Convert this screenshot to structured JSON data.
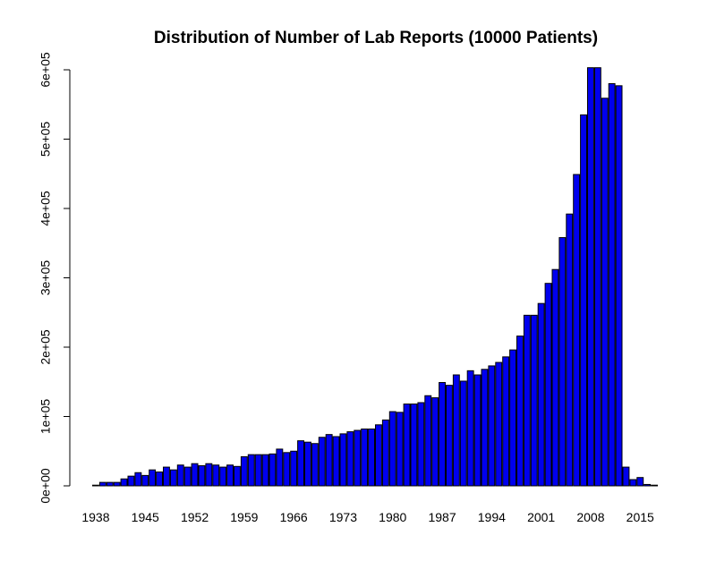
{
  "chart_data": {
    "type": "bar",
    "title": "Distribution of Number of Lab Reports (10000 Patients)",
    "xlabel": "",
    "ylabel": "",
    "ylim": [
      0,
      600000
    ],
    "y_ticks": [
      {
        "value": 0,
        "label": "0e+00"
      },
      {
        "value": 100000,
        "label": "1e+05"
      },
      {
        "value": 200000,
        "label": "2e+05"
      },
      {
        "value": 300000,
        "label": "3e+05"
      },
      {
        "value": 400000,
        "label": "4e+05"
      },
      {
        "value": 500000,
        "label": "5e+05"
      },
      {
        "value": 600000,
        "label": "6e+05"
      }
    ],
    "x_tick_labels": [
      "1938",
      "1945",
      "1952",
      "1959",
      "1966",
      "1973",
      "1980",
      "1987",
      "1994",
      "2001",
      "2008",
      "2015"
    ],
    "bar_color": "#0000ee",
    "categories": [
      "1938",
      "1939",
      "1940",
      "1941",
      "1942",
      "1943",
      "1944",
      "1945",
      "1946",
      "1947",
      "1948",
      "1949",
      "1950",
      "1951",
      "1952",
      "1953",
      "1954",
      "1955",
      "1956",
      "1957",
      "1958",
      "1959",
      "1960",
      "1961",
      "1962",
      "1963",
      "1964",
      "1965",
      "1966",
      "1967",
      "1968",
      "1969",
      "1970",
      "1971",
      "1972",
      "1973",
      "1974",
      "1975",
      "1976",
      "1977",
      "1978",
      "1979",
      "1980",
      "1981",
      "1982",
      "1983",
      "1984",
      "1985",
      "1986",
      "1987",
      "1988",
      "1989",
      "1990",
      "1991",
      "1992",
      "1993",
      "1994",
      "1995",
      "1996",
      "1997",
      "1998",
      "1999",
      "2000",
      "2001",
      "2002",
      "2003",
      "2004",
      "2005",
      "2006",
      "2007",
      "2008",
      "2009",
      "2010",
      "2011",
      "2012",
      "2013",
      "2014",
      "2015",
      "2016",
      "2017"
    ],
    "values": [
      1000,
      5000,
      5000,
      5000,
      10000,
      14000,
      19000,
      15000,
      23000,
      20000,
      27000,
      23000,
      30000,
      27000,
      32000,
      29000,
      32000,
      30000,
      27000,
      30000,
      28000,
      42000,
      45000,
      45000,
      45000,
      46000,
      53000,
      48000,
      50000,
      65000,
      63000,
      61000,
      70000,
      74000,
      71000,
      75000,
      78000,
      80000,
      82000,
      82000,
      88000,
      95000,
      107000,
      106000,
      118000,
      118000,
      120000,
      130000,
      127000,
      149000,
      145000,
      160000,
      151000,
      166000,
      160000,
      168000,
      173000,
      178000,
      186000,
      196000,
      216000,
      246000,
      246000,
      263000,
      292000,
      312000,
      358000,
      392000,
      449000,
      535000,
      603000,
      603000,
      559000,
      580000,
      577000,
      27000,
      9000,
      12000,
      2000,
      1000
    ]
  }
}
